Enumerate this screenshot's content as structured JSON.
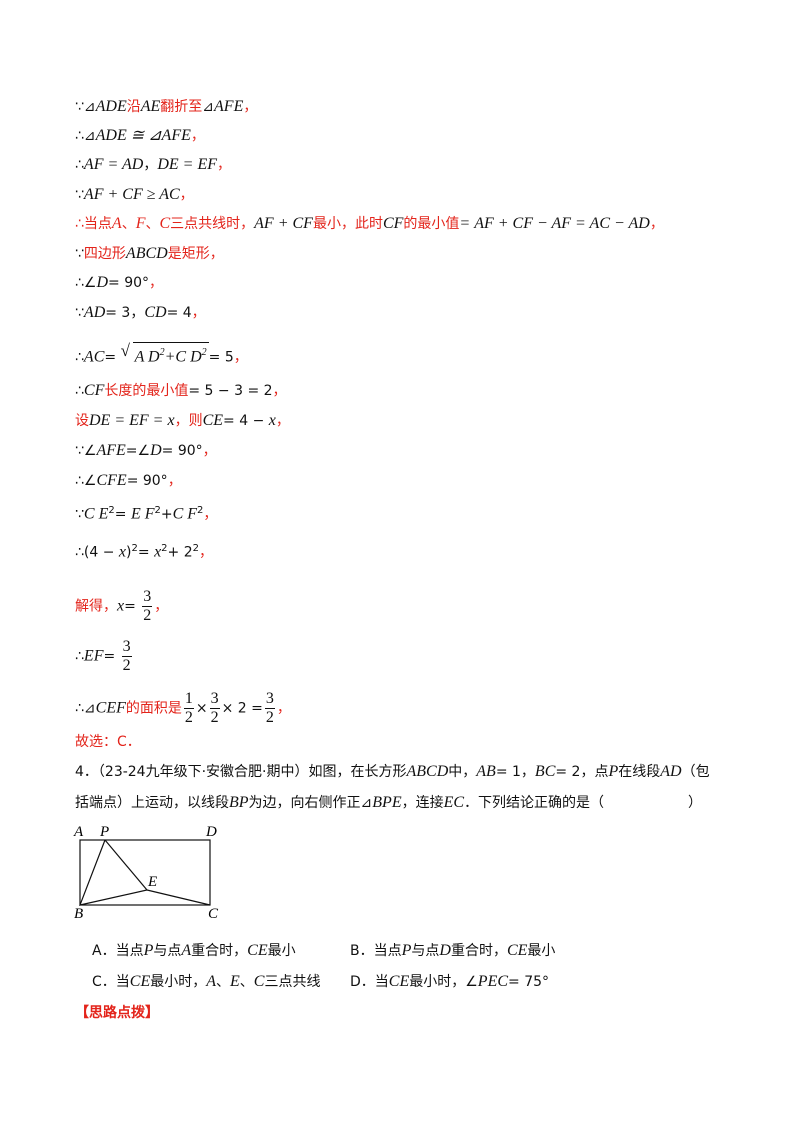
{
  "solution": {
    "lines": [
      [
        {
          "t": "∵⊿"
        },
        {
          "t": "ADE",
          "math": true
        },
        {
          "t": "沿",
          "red": true
        },
        {
          "t": "AE",
          "math": true
        },
        {
          "t": "翻折至",
          "red": true
        },
        {
          "t": "⊿"
        },
        {
          "t": "AFE",
          "math": true
        },
        {
          "t": "，",
          "red": true
        }
      ],
      [
        {
          "t": "∴⊿"
        },
        {
          "t": "ADE ≅ ⊿AFE",
          "math": true
        },
        {
          "t": "，",
          "red": true
        }
      ],
      [
        {
          "t": "∴"
        },
        {
          "t": "AF = AD",
          "math": true
        },
        {
          "t": "，"
        },
        {
          "t": "DE = EF",
          "math": true
        },
        {
          "t": "，",
          "red": true
        }
      ],
      [
        {
          "t": "∵"
        },
        {
          "t": "AF + CF ≥ AC",
          "math": true
        },
        {
          "t": "，",
          "red": true
        }
      ],
      [
        {
          "t": "∴当点",
          "red": true
        },
        {
          "t": "A",
          "math": true,
          "red": true
        },
        {
          "t": "、",
          "red": true
        },
        {
          "t": "F",
          "math": true,
          "red": true
        },
        {
          "t": "、",
          "red": true
        },
        {
          "t": "C",
          "math": true,
          "red": true
        },
        {
          "t": "三点共线时，",
          "red": true
        },
        {
          "t": "AF + CF",
          "math": true
        },
        {
          "t": "最小，此时",
          "red": true
        },
        {
          "t": "CF",
          "math": true
        },
        {
          "t": "的最小值",
          "red": true
        },
        {
          "t": "= AF + CF − AF = AC − AD",
          "math": true
        },
        {
          "t": "，",
          "red": true
        }
      ],
      [
        {
          "t": "∵"
        },
        {
          "t": "四边形",
          "red": true
        },
        {
          "t": "ABCD",
          "math": true
        },
        {
          "t": "是矩形，",
          "red": true
        }
      ],
      [
        {
          "t": "∴∠"
        },
        {
          "t": "D",
          "math": true
        },
        {
          "t": "= 90°"
        },
        {
          "t": "，",
          "red": true
        }
      ],
      [
        {
          "t": "∵"
        },
        {
          "t": "AD",
          "math": true
        },
        {
          "t": "= 3，"
        },
        {
          "t": "CD",
          "math": true
        },
        {
          "t": "= 4"
        },
        {
          "t": "，",
          "red": true
        }
      ],
      [
        {
          "t": "∴"
        },
        {
          "t": "AC",
          "math": true
        },
        {
          "t": "= "
        },
        {
          "root": [
            {
              "t": "A D",
              "math": true
            },
            {
              "t": "2",
              "sup": true
            },
            {
              "t": "+"
            },
            {
              "t": "C D",
              "math": true
            },
            {
              "t": "2",
              "sup": true
            }
          ]
        },
        {
          "t": "= 5"
        },
        {
          "t": "，",
          "red": true
        }
      ],
      [
        {
          "t": "∴"
        },
        {
          "t": "CF",
          "math": true
        },
        {
          "t": "长度的最小值",
          "red": true
        },
        {
          "t": "= 5 − 3 = 2"
        },
        {
          "t": "，",
          "red": true
        }
      ],
      [
        {
          "t": "设",
          "red": true
        },
        {
          "t": "DE = EF = x",
          "math": true
        },
        {
          "t": "，则",
          "red": true
        },
        {
          "t": "CE",
          "math": true
        },
        {
          "t": "= 4 − "
        },
        {
          "t": "x",
          "math": true
        },
        {
          "t": "，",
          "red": true
        }
      ],
      [
        {
          "t": "∵∠"
        },
        {
          "t": "AFE",
          "math": true
        },
        {
          "t": "=∠"
        },
        {
          "t": "D",
          "math": true
        },
        {
          "t": "= 90°"
        },
        {
          "t": "，",
          "red": true
        }
      ],
      [
        {
          "t": "∴∠"
        },
        {
          "t": "CFE",
          "math": true
        },
        {
          "t": "= 90°"
        },
        {
          "t": "，",
          "red": true
        }
      ],
      [
        {
          "t": "∵"
        },
        {
          "t": "C E",
          "math": true
        },
        {
          "t": "2",
          "sup": true
        },
        {
          "t": "= "
        },
        {
          "t": "E F",
          "math": true
        },
        {
          "t": "2",
          "sup": true
        },
        {
          "t": "+"
        },
        {
          "t": "C F",
          "math": true
        },
        {
          "t": "2",
          "sup": true
        },
        {
          "t": "，",
          "red": true
        }
      ],
      [
        {
          "t": "∴(4 − "
        },
        {
          "t": "x",
          "math": true
        },
        {
          "t": ")"
        },
        {
          "t": "2",
          "sup": true
        },
        {
          "t": "= "
        },
        {
          "t": "x",
          "math": true
        },
        {
          "t": "2",
          "sup": true
        },
        {
          "t": "+ 2"
        },
        {
          "t": "2",
          "sup": true
        },
        {
          "t": "，",
          "red": true
        }
      ],
      [
        {
          "t": "解得，",
          "red": true
        },
        {
          "t": "x",
          "math": true
        },
        {
          "t": "= "
        },
        {
          "num": "3",
          "den": "2"
        },
        {
          "t": "，",
          "red": true
        }
      ],
      [
        {
          "t": "∴"
        },
        {
          "t": "EF",
          "math": true
        },
        {
          "t": "= "
        },
        {
          "num": "3",
          "den": "2"
        }
      ],
      [
        {
          "t": "∴⊿"
        },
        {
          "t": "CEF",
          "math": true
        },
        {
          "t": "的面积是",
          "red": true
        },
        {
          "num": "1",
          "den": "2"
        },
        {
          "t": "×"
        },
        {
          "num": "3",
          "den": "2"
        },
        {
          "t": "× 2 ="
        },
        {
          "num": "3",
          "den": "2"
        },
        {
          "t": "，",
          "red": true
        }
      ],
      [
        {
          "t": "故选：C．",
          "red": true
        }
      ]
    ]
  },
  "question": {
    "lines": [
      [
        {
          "t": "4．（23-24九年级下·安徽合肥·期中）如图，在长方形"
        },
        {
          "t": "ABCD",
          "math": true
        },
        {
          "t": "中，"
        },
        {
          "t": "AB",
          "math": true
        },
        {
          "t": "= 1，"
        },
        {
          "t": "BC",
          "math": true
        },
        {
          "t": "= 2，点"
        },
        {
          "t": "P",
          "math": true
        },
        {
          "t": "在线段"
        },
        {
          "t": "AD",
          "math": true
        },
        {
          "t": "（包"
        }
      ],
      [
        {
          "t": "括端点）上运动，以线段"
        },
        {
          "t": "BP",
          "math": true
        },
        {
          "t": "为边，向右侧作正⊿"
        },
        {
          "t": "BPE",
          "math": true
        },
        {
          "t": "，连接"
        },
        {
          "t": "EC",
          "math": true
        },
        {
          "t": "．下列结论正确的是（　　　　　　）"
        }
      ]
    ],
    "figure": {
      "labels": [
        "A",
        "P",
        "D",
        "E",
        "B",
        "C"
      ]
    },
    "options": [
      [
        {
          "t": "A．当点"
        },
        {
          "t": "P",
          "math": true
        },
        {
          "t": "与点"
        },
        {
          "t": "A",
          "math": true
        },
        {
          "t": "重合时，"
        },
        {
          "t": "CE",
          "math": true
        },
        {
          "t": "最小"
        }
      ],
      [
        {
          "t": "B．当点"
        },
        {
          "t": "P",
          "math": true
        },
        {
          "t": "与点"
        },
        {
          "t": "D",
          "math": true
        },
        {
          "t": "重合时，"
        },
        {
          "t": "CE",
          "math": true
        },
        {
          "t": "最小"
        }
      ],
      [
        {
          "t": "C．当"
        },
        {
          "t": "CE",
          "math": true
        },
        {
          "t": "最小时，"
        },
        {
          "t": "A",
          "math": true
        },
        {
          "t": "、"
        },
        {
          "t": "E",
          "math": true
        },
        {
          "t": "、"
        },
        {
          "t": "C",
          "math": true
        },
        {
          "t": "三点共线"
        }
      ],
      [
        {
          "t": "D．当"
        },
        {
          "t": "CE",
          "math": true
        },
        {
          "t": "最小时，∠"
        },
        {
          "t": "PEC",
          "math": true
        },
        {
          "t": "= 75°"
        }
      ]
    ],
    "heading": "【思路点拨】"
  }
}
